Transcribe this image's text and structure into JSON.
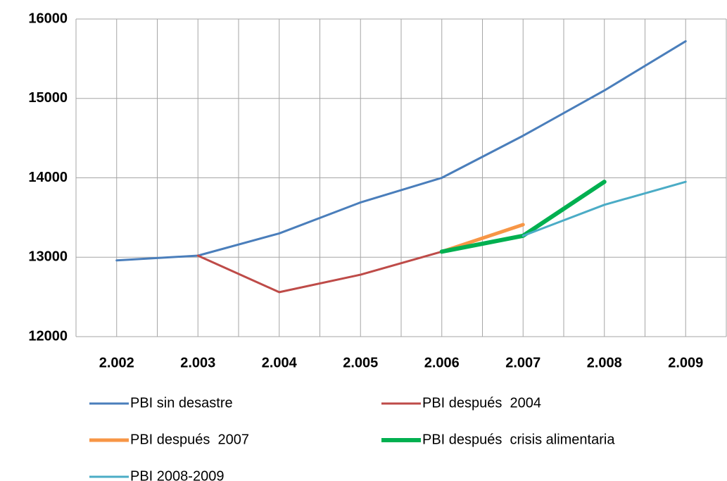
{
  "chart_data": {
    "type": "line",
    "categories": [
      "2.002",
      "2.003",
      "2.004",
      "2.005",
      "2.006",
      "2.007",
      "2.008",
      "2.009"
    ],
    "series": [
      {
        "name": "PBI sin desastre",
        "color": "#4a7ebb",
        "width": 3,
        "values": [
          12960,
          13020,
          13300,
          13690,
          14000,
          14530,
          15100,
          15720
        ]
      },
      {
        "name": "PBI después  2004",
        "color": "#be4b48",
        "width": 3,
        "values": [
          null,
          13020,
          12560,
          12780,
          13070,
          null,
          null,
          null
        ]
      },
      {
        "name": "PBI después  2007",
        "color": "#f79646",
        "width": 5,
        "values": [
          null,
          null,
          null,
          null,
          13070,
          13410,
          null,
          null
        ]
      },
      {
        "name": "PBI después  crisis alimentaria",
        "color": "#00b050",
        "width": 6,
        "values": [
          null,
          null,
          null,
          null,
          13070,
          13270,
          13950,
          null
        ]
      },
      {
        "name": "PBI 2008-2009",
        "color": "#4bacc6",
        "width": 3,
        "values": [
          null,
          null,
          null,
          null,
          null,
          13270,
          13660,
          13950
        ]
      }
    ],
    "ylim": [
      12000,
      16000
    ],
    "yticks": [
      12000,
      13000,
      14000,
      15000,
      16000
    ],
    "grid": true
  }
}
